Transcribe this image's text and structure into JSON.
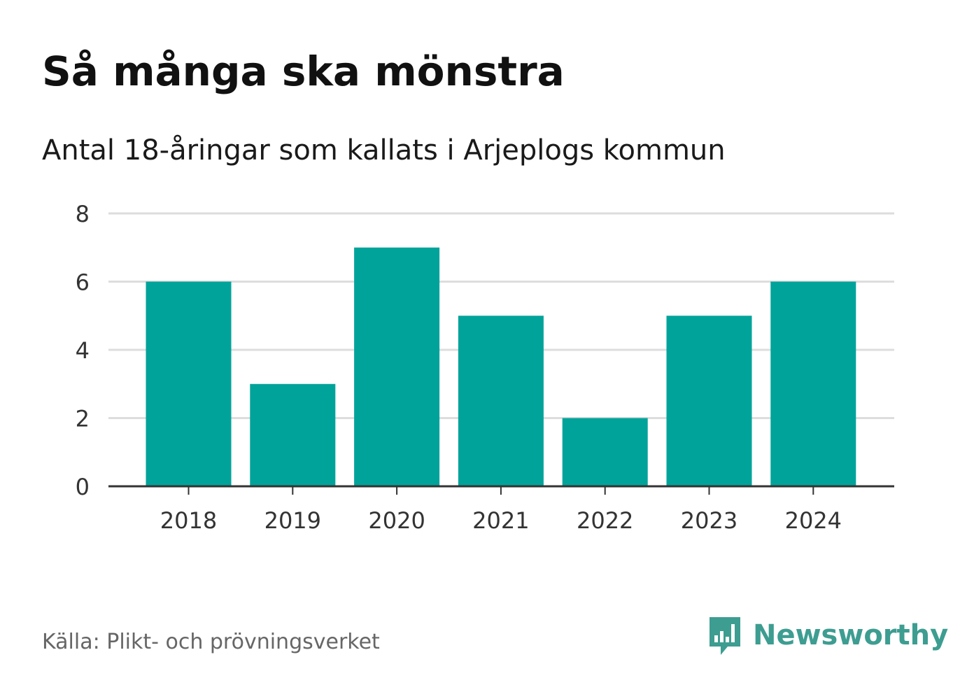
{
  "title": "Så många ska mönstra",
  "subtitle": "Antal 18-åringar som kallats i Arjeplogs kommun",
  "source": "Källa: Plikt- och prövningsverket",
  "brand": {
    "name": "Newsworthy",
    "icon": "newsworthy-logo-icon",
    "color": "#3d9d91"
  },
  "colors": {
    "bar": "#00a39a",
    "grid": "#dddddd",
    "axis": "#333333"
  },
  "chart_data": {
    "type": "bar",
    "categories": [
      "2018",
      "2019",
      "2020",
      "2021",
      "2022",
      "2023",
      "2024"
    ],
    "values": [
      6,
      3,
      7,
      5,
      2,
      5,
      6
    ],
    "title": "Så många ska mönstra",
    "subtitle": "Antal 18-åringar som kallats i Arjeplogs kommun",
    "xlabel": "",
    "ylabel": "",
    "ylim": [
      0,
      8
    ],
    "yticks": [
      0,
      2,
      4,
      6,
      8
    ],
    "grid": true
  }
}
